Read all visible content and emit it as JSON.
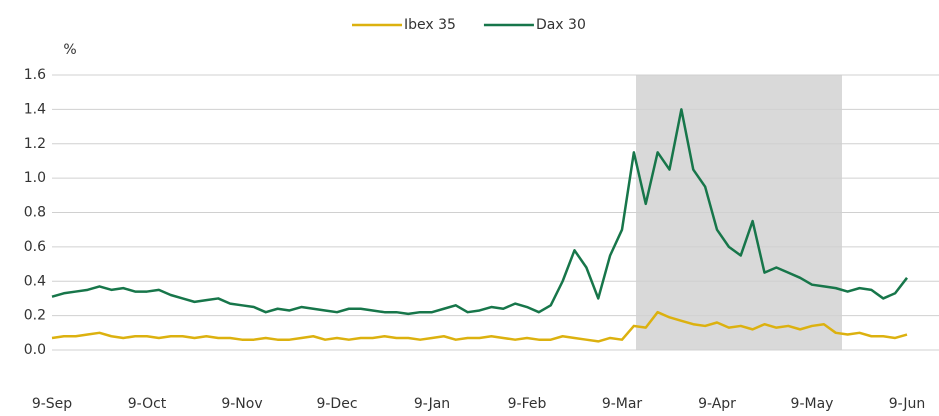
{
  "chart_data": {
    "type": "line",
    "y_label": "%",
    "categories": [
      "9-Sep",
      null,
      null,
      null,
      null,
      null,
      null,
      null,
      "9-Oct",
      null,
      null,
      null,
      null,
      null,
      null,
      null,
      "9-Nov",
      null,
      null,
      null,
      null,
      null,
      null,
      null,
      "9-Dec",
      null,
      null,
      null,
      null,
      null,
      null,
      null,
      "9-Jan",
      null,
      null,
      null,
      null,
      null,
      null,
      null,
      "9-Feb",
      null,
      null,
      null,
      null,
      null,
      null,
      null,
      "9-Mar",
      null,
      null,
      null,
      null,
      null,
      null,
      null,
      "9-Apr",
      null,
      null,
      null,
      null,
      null,
      null,
      null,
      "9-May",
      null,
      null,
      null,
      null,
      null,
      null,
      null,
      "9-Jun"
    ],
    "series": [
      {
        "name": "Ibex 35",
        "color": "#dcb10f",
        "values": [
          0.07,
          0.08,
          0.08,
          0.09,
          0.1,
          0.08,
          0.07,
          0.08,
          0.08,
          0.07,
          0.08,
          0.08,
          0.07,
          0.08,
          0.07,
          0.07,
          0.06,
          0.06,
          0.07,
          0.06,
          0.06,
          0.07,
          0.08,
          0.06,
          0.07,
          0.06,
          0.07,
          0.07,
          0.08,
          0.07,
          0.07,
          0.06,
          0.07,
          0.08,
          0.06,
          0.07,
          0.07,
          0.08,
          0.07,
          0.06,
          0.07,
          0.06,
          0.06,
          0.08,
          0.07,
          0.06,
          0.05,
          0.07,
          0.06,
          0.14,
          0.13,
          0.22,
          0.19,
          0.17,
          0.15,
          0.14,
          0.16,
          0.13,
          0.14,
          0.12,
          0.15,
          0.13,
          0.14,
          0.12,
          0.14,
          0.15,
          0.1,
          0.09,
          0.1,
          0.08,
          0.08,
          0.07,
          0.09
        ]
      },
      {
        "name": "Dax 30",
        "color": "#17764a",
        "values": [
          0.31,
          0.33,
          0.34,
          0.35,
          0.37,
          0.35,
          0.36,
          0.34,
          0.34,
          0.35,
          0.32,
          0.3,
          0.28,
          0.29,
          0.3,
          0.27,
          0.26,
          0.25,
          0.22,
          0.24,
          0.23,
          0.25,
          0.24,
          0.23,
          0.22,
          0.24,
          0.24,
          0.23,
          0.22,
          0.22,
          0.21,
          0.22,
          0.22,
          0.24,
          0.26,
          0.22,
          0.23,
          0.25,
          0.24,
          0.27,
          0.25,
          0.22,
          0.26,
          0.4,
          0.58,
          0.48,
          0.3,
          0.55,
          0.7,
          1.15,
          0.85,
          1.15,
          1.05,
          1.4,
          1.05,
          0.95,
          0.7,
          0.6,
          0.55,
          0.75,
          0.45,
          0.48,
          0.45,
          0.42,
          0.38,
          0.37,
          0.36,
          0.34,
          0.36,
          0.35,
          0.3,
          0.33,
          0.42
        ]
      }
    ],
    "ylim": [
      0,
      1.6
    ],
    "yticks": [
      {
        "value": 0,
        "label": "0.0"
      },
      0.2,
      0.4,
      0.6,
      0.8,
      {
        "value": 1,
        "label": "1.0"
      },
      1.2,
      1.4,
      1.6
    ],
    "grid": true,
    "legend": "top"
  }
}
